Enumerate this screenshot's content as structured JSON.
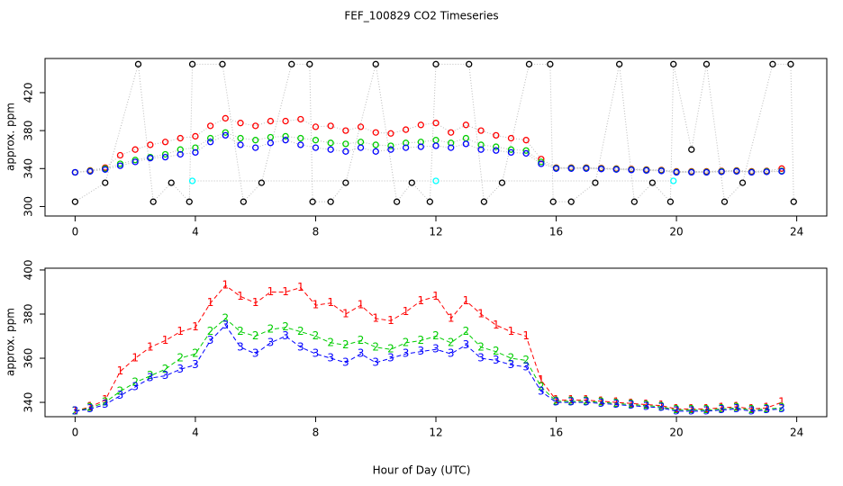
{
  "chart_data": [
    {
      "type": "scatter",
      "title": "FEF_100829  CO2 Timeseries",
      "ylabel": "approx. ppm",
      "xlim": [
        -1,
        25
      ],
      "xticks": [
        0,
        4,
        8,
        12,
        16,
        20,
        24
      ],
      "ylim": [
        290,
        456
      ],
      "yticks": [
        300,
        340,
        380,
        420
      ],
      "x": [
        0,
        0.5,
        1,
        1.5,
        2,
        2.5,
        3,
        3.5,
        4,
        4.5,
        5,
        5.5,
        6,
        6.5,
        7,
        7.5,
        8,
        8.5,
        9,
        9.5,
        10,
        10.5,
        11,
        11.5,
        12,
        12.5,
        13,
        13.5,
        14,
        14.5,
        15,
        15.5,
        16,
        16.5,
        17,
        17.5,
        18,
        18.5,
        19,
        19.5,
        20,
        20.5,
        21,
        21.5,
        22,
        22.5,
        23,
        23.5
      ],
      "series": [
        {
          "color": "#ff0000",
          "values": [
            336,
            338,
            341,
            354,
            360,
            365,
            368,
            372,
            374,
            385,
            393,
            388,
            385,
            390,
            390,
            392,
            384,
            385,
            380,
            384,
            378,
            377,
            381,
            386,
            388,
            378,
            386,
            380,
            375,
            372,
            370,
            350,
            341,
            341,
            341,
            340.5,
            340,
            339.5,
            339,
            338.5,
            337,
            337,
            337,
            337.5,
            338,
            337,
            337.5,
            340
          ]
        },
        {
          "color": "#00cd00",
          "values": [
            336,
            337.5,
            340,
            345,
            349,
            352,
            355,
            360,
            362,
            372,
            378,
            372,
            370,
            373,
            374,
            372,
            370,
            367,
            366,
            368,
            365,
            364,
            367,
            368,
            370,
            367,
            372,
            365,
            363,
            360,
            359,
            347,
            340.5,
            340.5,
            340.5,
            340,
            339.5,
            339,
            338.5,
            338,
            336.5,
            336.5,
            336.5,
            337,
            337.5,
            336.5,
            337,
            337.5
          ]
        },
        {
          "color": "#0000ff",
          "values": [
            336,
            337,
            339,
            343,
            347,
            351,
            352,
            355,
            357,
            368,
            375,
            365,
            362,
            367,
            370,
            365,
            362,
            360,
            358,
            362,
            358,
            360,
            362,
            363,
            364,
            362,
            366,
            360,
            359,
            357,
            356,
            345,
            340,
            340,
            340,
            339.5,
            339,
            338.5,
            338,
            337.5,
            336,
            336,
            336,
            336.5,
            337,
            336,
            336.5,
            337
          ]
        },
        {
          "color": "#000000",
          "x": [
            0,
            1,
            2.1,
            2.6,
            3.2,
            3.8,
            3.9,
            4.9,
            5.6,
            6.2,
            7.2,
            7.8,
            7.9,
            8.5,
            9,
            10,
            10.7,
            11.2,
            11.8,
            12,
            13.1,
            13.6,
            14.2,
            15.1,
            15.8,
            15.9,
            16.5,
            17.3,
            18.1,
            18.6,
            19.2,
            19.8,
            19.9,
            20.5,
            21,
            21.6,
            22.2,
            23.2,
            23.8,
            23.9
          ],
          "values": [
            305,
            325,
            450,
            305,
            325,
            305,
            450,
            450,
            305,
            325,
            450,
            450,
            305,
            305,
            325,
            450,
            305,
            325,
            305,
            450,
            450,
            305,
            325,
            450,
            450,
            305,
            305,
            325,
            450,
            305,
            325,
            305,
            450,
            360,
            450,
            305,
            325,
            450,
            450,
            305
          ]
        },
        {
          "color": "#00ffff",
          "x": [
            3.9,
            12,
            19.9
          ],
          "values": [
            327,
            327,
            327
          ]
        }
      ]
    },
    {
      "type": "line",
      "xlabel": "Hour of Day (UTC)",
      "ylabel": "approx. ppm",
      "xlim": [
        -1,
        25
      ],
      "xticks": [
        0,
        4,
        8,
        12,
        16,
        20,
        24
      ],
      "ylim": [
        333.5,
        400.8
      ],
      "yticks": [
        340,
        360,
        380,
        400
      ],
      "x": [
        0,
        0.5,
        1,
        1.5,
        2,
        2.5,
        3,
        3.5,
        4,
        4.5,
        5,
        5.5,
        6,
        6.5,
        7,
        7.5,
        8,
        8.5,
        9,
        9.5,
        10,
        10.5,
        11,
        11.5,
        12,
        12.5,
        13,
        13.5,
        14,
        14.5,
        15,
        15.5,
        16,
        16.5,
        17,
        17.5,
        18,
        18.5,
        19,
        19.5,
        20,
        20.5,
        21,
        21.5,
        22,
        22.5,
        23,
        23.5
      ],
      "series": [
        {
          "color": "#ff0000",
          "marker": "1",
          "values": [
            336,
            338,
            341,
            354,
            360,
            365,
            368,
            372,
            374,
            385,
            393,
            388,
            385,
            390,
            390,
            392,
            384,
            385,
            380,
            384,
            378,
            377,
            381,
            386,
            388,
            378,
            386,
            380,
            375,
            372,
            370,
            350,
            341,
            341,
            341,
            340.5,
            340,
            339.5,
            339,
            338.5,
            337,
            337,
            337,
            337.5,
            338,
            337,
            337.5,
            340
          ]
        },
        {
          "color": "#00cd00",
          "marker": "2",
          "values": [
            336,
            337.5,
            340,
            345,
            349,
            352,
            355,
            360,
            362,
            372,
            378,
            372,
            370,
            373,
            374,
            372,
            370,
            367,
            366,
            368,
            365,
            364,
            367,
            368,
            370,
            367,
            372,
            365,
            363,
            360,
            359,
            347,
            340.5,
            340.5,
            340.5,
            340,
            339.5,
            339,
            338.5,
            338,
            336.5,
            336.5,
            336.5,
            337,
            337.5,
            336.5,
            337,
            337.5
          ]
        },
        {
          "color": "#0000ff",
          "marker": "3",
          "values": [
            336,
            337,
            339,
            343,
            347,
            351,
            352,
            355,
            357,
            368,
            375,
            365,
            362,
            367,
            370,
            365,
            362,
            360,
            358,
            362,
            358,
            360,
            362,
            363,
            364,
            362,
            366,
            360,
            359,
            357,
            356,
            345,
            340,
            340,
            340,
            339.5,
            339,
            338.5,
            338,
            337.5,
            336,
            336,
            336,
            336.5,
            337,
            336,
            336.5,
            337
          ]
        }
      ]
    }
  ]
}
